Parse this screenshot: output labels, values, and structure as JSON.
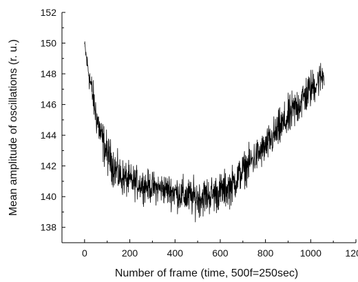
{
  "chart_data": {
    "type": "line",
    "title": "",
    "xlabel": "Number of frame (time, 500f=250sec)",
    "ylabel": "Mean amplitude of oscillations (r. u.)",
    "xlim": [
      -100,
      1200
    ],
    "ylim": [
      137,
      152
    ],
    "x_ticks": [
      0,
      200,
      400,
      600,
      800,
      1000,
      1200
    ],
    "y_ticks": [
      138,
      140,
      142,
      144,
      146,
      148,
      150,
      152
    ],
    "line_color": "#000000",
    "grid": false,
    "legend": "none",
    "series": [
      {
        "x": [
          0,
          10,
          25,
          50,
          75,
          100,
          150,
          200,
          250,
          300,
          350,
          400,
          450,
          500,
          550,
          600,
          650,
          700,
          750,
          800,
          850,
          900,
          950,
          1000,
          1060
        ],
        "values": [
          149.9,
          148.8,
          147.5,
          145.4,
          143.8,
          142.8,
          141.4,
          141.0,
          140.8,
          140.6,
          140.5,
          140.3,
          140.0,
          139.9,
          140.1,
          140.3,
          140.7,
          141.7,
          142.5,
          143.2,
          144.2,
          145.1,
          146.1,
          147.0,
          148.0
        ],
        "noise_amplitude": [
          0.3,
          0.6,
          0.9,
          1.1,
          1.2,
          1.2,
          1.1,
          1.0,
          0.9,
          0.9,
          0.9,
          1.0,
          1.1,
          1.1,
          1.1,
          1.1,
          1.1,
          1.0,
          1.0,
          1.0,
          1.1,
          1.2,
          1.2,
          1.1,
          0.9
        ]
      }
    ]
  }
}
